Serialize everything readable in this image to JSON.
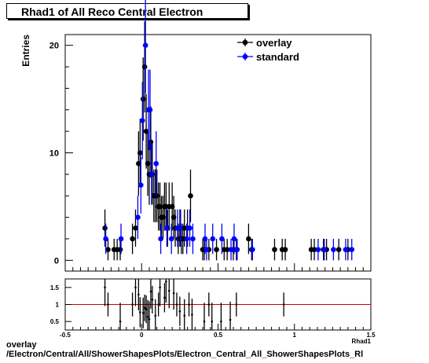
{
  "title": "Rhad1 of All Reco Central Electron",
  "footer": {
    "line1": "overlay",
    "line2": "/Electron/Central/All/ShowerShapesPlots/Electron_Central_All_ShowerShapesPlots_Rl"
  },
  "chart_data": [
    {
      "type": "scatter",
      "ylabel": "Entries",
      "xlim": [
        -0.5,
        1.5
      ],
      "ylim": [
        -1,
        21
      ],
      "yticks": [
        0,
        10,
        20
      ],
      "grid": false,
      "legend_position": "top-right",
      "series": [
        {
          "name": "overlay",
          "color": "#000000",
          "points": [
            [
              -0.24,
              3
            ],
            [
              -0.22,
              1
            ],
            [
              -0.18,
              1
            ],
            [
              -0.16,
              1
            ],
            [
              -0.14,
              1
            ],
            [
              -0.06,
              2
            ],
            [
              -0.04,
              3
            ],
            [
              -0.02,
              9
            ],
            [
              -0.01,
              10
            ],
            [
              0.01,
              15
            ],
            [
              0.02,
              18
            ],
            [
              0.03,
              12
            ],
            [
              0.04,
              9
            ],
            [
              0.05,
              8
            ],
            [
              0.06,
              11
            ],
            [
              0.07,
              8
            ],
            [
              0.08,
              6
            ],
            [
              0.09,
              6
            ],
            [
              0.1,
              6
            ],
            [
              0.11,
              5
            ],
            [
              0.12,
              5
            ],
            [
              0.13,
              4
            ],
            [
              0.14,
              4
            ],
            [
              0.15,
              5
            ],
            [
              0.16,
              5
            ],
            [
              0.17,
              3
            ],
            [
              0.18,
              5
            ],
            [
              0.2,
              5
            ],
            [
              0.21,
              4
            ],
            [
              0.22,
              3
            ],
            [
              0.24,
              2
            ],
            [
              0.25,
              3
            ],
            [
              0.26,
              2
            ],
            [
              0.27,
              2
            ],
            [
              0.28,
              3
            ],
            [
              0.3,
              3
            ],
            [
              0.32,
              6
            ],
            [
              0.4,
              1
            ],
            [
              0.41,
              1
            ],
            [
              0.44,
              1
            ],
            [
              0.49,
              1
            ],
            [
              0.54,
              1
            ],
            [
              0.56,
              1
            ],
            [
              0.6,
              1
            ],
            [
              0.62,
              1
            ],
            [
              0.7,
              2
            ],
            [
              0.72,
              1
            ],
            [
              0.87,
              1
            ],
            [
              0.92,
              1
            ],
            [
              0.94,
              1
            ],
            [
              1.11,
              1
            ],
            [
              1.13,
              1
            ],
            [
              1.19,
              1
            ],
            [
              1.21,
              1
            ],
            [
              1.29,
              1
            ],
            [
              1.35,
              1
            ]
          ]
        },
        {
          "name": "standard",
          "color": "#0000ff",
          "points": [
            [
              -0.24,
              2
            ],
            [
              -0.14,
              2
            ],
            [
              -0.03,
              4
            ],
            [
              -0.01,
              7
            ],
            [
              0.0,
              13
            ],
            [
              0.02,
              20
            ],
            [
              0.04,
              14
            ],
            [
              0.05,
              14
            ],
            [
              0.06,
              8
            ],
            [
              0.09,
              9
            ],
            [
              0.12,
              2
            ],
            [
              0.16,
              3
            ],
            [
              0.19,
              2
            ],
            [
              0.23,
              3
            ],
            [
              0.25,
              3
            ],
            [
              0.29,
              2
            ],
            [
              0.31,
              3
            ],
            [
              0.33,
              2
            ],
            [
              0.41,
              2
            ],
            [
              0.42,
              1
            ],
            [
              0.46,
              2
            ],
            [
              0.52,
              2
            ],
            [
              0.58,
              1
            ],
            [
              0.6,
              2
            ],
            [
              0.62,
              1
            ],
            [
              0.72,
              1
            ],
            [
              1.15,
              1
            ],
            [
              1.19,
              1
            ],
            [
              1.25,
              1
            ],
            [
              1.33,
              1
            ],
            [
              1.37,
              1
            ]
          ]
        }
      ]
    },
    {
      "type": "scatter",
      "xlabel": "Rhad1",
      "xlim": [
        -0.5,
        1.5
      ],
      "ylim": [
        0.25,
        1.75
      ],
      "yticks": [
        0.5,
        1,
        1.5
      ],
      "xticks": [
        -0.5,
        0,
        0.5,
        1,
        1.5
      ],
      "reference_line": 1,
      "reference_color": "#cc0000",
      "series": [
        {
          "name": "",
          "color": "#000000",
          "points": [
            [
              -0.24,
              1.5
            ],
            [
              -0.22,
              1.0
            ],
            [
              -0.14,
              0.5
            ],
            [
              -0.06,
              1.0
            ],
            [
              -0.04,
              1.5
            ],
            [
              -0.02,
              1.29
            ],
            [
              -0.01,
              0.77
            ],
            [
              0.01,
              0.75
            ],
            [
              0.02,
              0.9
            ],
            [
              0.03,
              0.86
            ],
            [
              0.04,
              0.64
            ],
            [
              0.05,
              0.57
            ],
            [
              0.06,
              1.38
            ],
            [
              0.07,
              1.14
            ],
            [
              0.09,
              0.67
            ],
            [
              0.11,
              1.0
            ],
            [
              0.12,
              1.5
            ],
            [
              0.15,
              1.2
            ],
            [
              0.16,
              1.67
            ],
            [
              0.18,
              1.4
            ],
            [
              0.21,
              1.33
            ],
            [
              0.23,
              1.0
            ],
            [
              0.25,
              0.8
            ],
            [
              0.28,
              0.67
            ],
            [
              0.31,
              1.0
            ],
            [
              0.33,
              0.7
            ],
            [
              0.41,
              0.5
            ],
            [
              0.44,
              1.0
            ],
            [
              0.46,
              0.5
            ],
            [
              0.52,
              0.5
            ],
            [
              0.58,
              0.55
            ],
            [
              0.62,
              1.0
            ],
            [
              0.93,
              1.0
            ]
          ]
        }
      ]
    }
  ]
}
